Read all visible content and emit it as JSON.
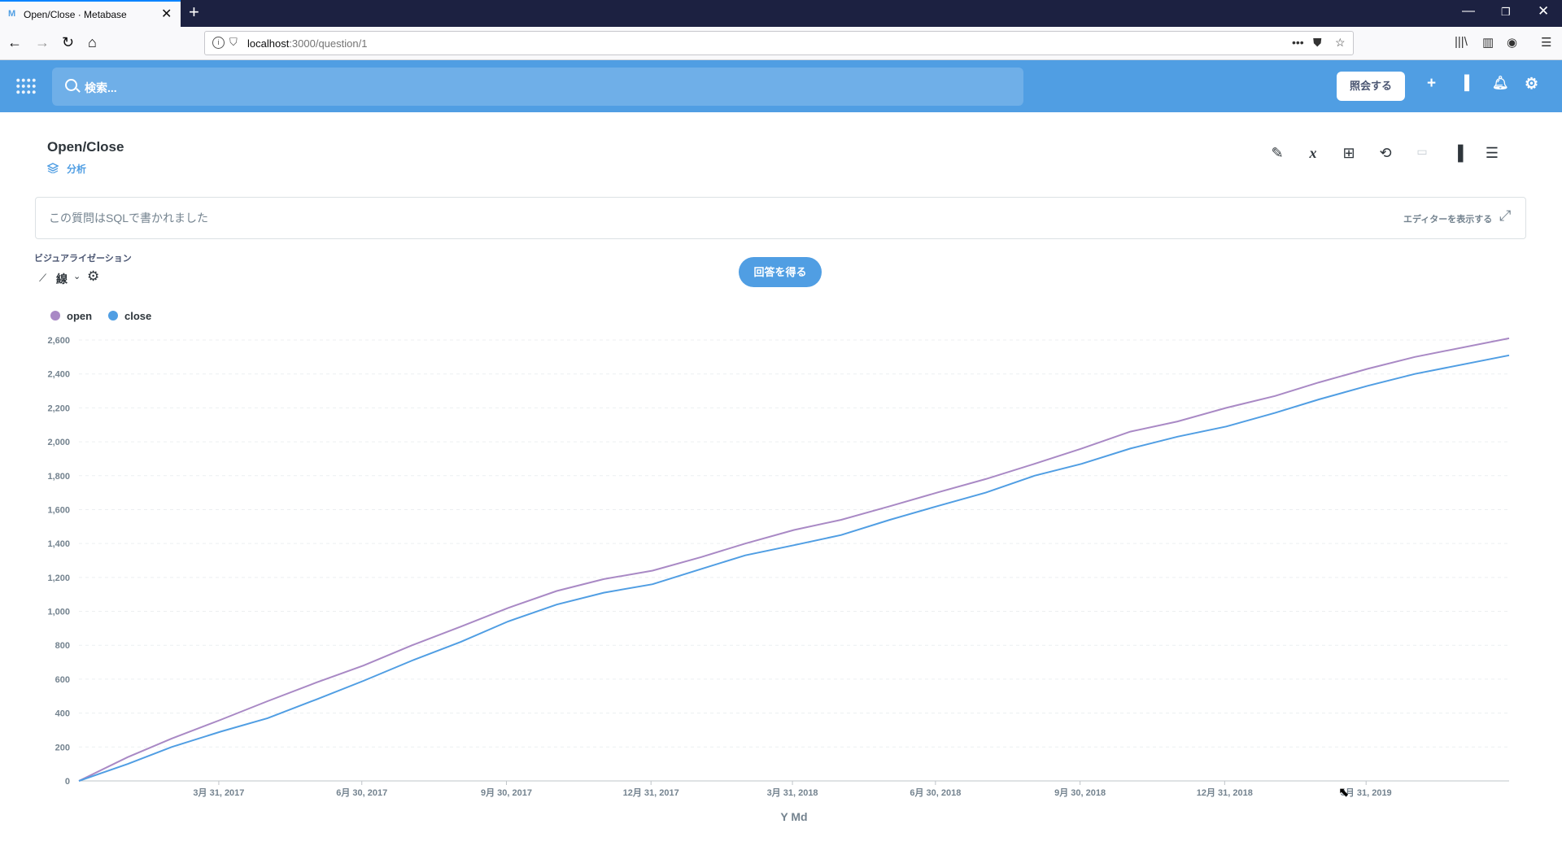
{
  "browser": {
    "tab_title": "Open/Close · Metabase",
    "favicon": "M",
    "url_host": "localhost",
    "url_path": ":3000/question/1"
  },
  "header": {
    "search_placeholder": "検索...",
    "ask_button": "照会する"
  },
  "question": {
    "title": "Open/Close",
    "collection": "分析",
    "sql_notice": "この質問はSQLで書かれました",
    "show_editor": "エディターを表示する"
  },
  "viz": {
    "label": "ビジュアライゼーション",
    "type": "線",
    "run_button": "回答を得る"
  },
  "colors": {
    "brand": "#509ee3",
    "open": "#a989c5",
    "close": "#509ee3"
  },
  "chart_data": {
    "type": "line",
    "xlabel": "Y Md",
    "ylabel": "",
    "ylim": [
      0,
      2600
    ],
    "yticks": [
      0,
      200,
      400,
      600,
      800,
      1000,
      1200,
      1400,
      1600,
      1800,
      2000,
      2200,
      2400,
      2600
    ],
    "ytick_labels": [
      "0",
      "200",
      "400",
      "600",
      "800",
      "1,000",
      "1,200",
      "1,400",
      "1,600",
      "1,800",
      "2,000",
      "2,200",
      "2,400",
      "2,600"
    ],
    "x_range": [
      "2017-01-01",
      "2019-06-30"
    ],
    "xticks": [
      "2017-03-31",
      "2017-06-30",
      "2017-09-30",
      "2017-12-31",
      "2018-03-31",
      "2018-06-30",
      "2018-09-30",
      "2018-12-31",
      "2019-03-31"
    ],
    "xtick_labels": [
      "3月 31, 2017",
      "6月 30, 2017",
      "9月 30, 2017",
      "12月 31, 2017",
      "3月 31, 2018",
      "6月 30, 2018",
      "9月 30, 2018",
      "12月 31, 2018",
      "3月 31, 2019"
    ],
    "legend_position": "top-left",
    "grid": true,
    "series": [
      {
        "name": "open",
        "color": "#a989c5",
        "points": [
          [
            "2017-01-01",
            0
          ],
          [
            "2017-02-01",
            140
          ],
          [
            "2017-03-01",
            250
          ],
          [
            "2017-04-01",
            360
          ],
          [
            "2017-05-01",
            470
          ],
          [
            "2017-06-01",
            580
          ],
          [
            "2017-07-01",
            680
          ],
          [
            "2017-08-01",
            800
          ],
          [
            "2017-09-01",
            910
          ],
          [
            "2017-10-01",
            1020
          ],
          [
            "2017-11-01",
            1120
          ],
          [
            "2017-12-01",
            1190
          ],
          [
            "2018-01-01",
            1240
          ],
          [
            "2018-02-01",
            1320
          ],
          [
            "2018-03-01",
            1400
          ],
          [
            "2018-04-01",
            1480
          ],
          [
            "2018-05-01",
            1540
          ],
          [
            "2018-06-01",
            1620
          ],
          [
            "2018-07-01",
            1700
          ],
          [
            "2018-08-01",
            1780
          ],
          [
            "2018-09-01",
            1870
          ],
          [
            "2018-10-01",
            1960
          ],
          [
            "2018-11-01",
            2060
          ],
          [
            "2018-12-01",
            2120
          ],
          [
            "2019-01-01",
            2200
          ],
          [
            "2019-02-01",
            2270
          ],
          [
            "2019-03-01",
            2350
          ],
          [
            "2019-04-01",
            2430
          ],
          [
            "2019-05-01",
            2500
          ],
          [
            "2019-06-30",
            2610
          ]
        ]
      },
      {
        "name": "close",
        "color": "#509ee3",
        "points": [
          [
            "2017-01-01",
            0
          ],
          [
            "2017-02-01",
            100
          ],
          [
            "2017-03-01",
            200
          ],
          [
            "2017-04-01",
            290
          ],
          [
            "2017-05-01",
            370
          ],
          [
            "2017-06-01",
            480
          ],
          [
            "2017-07-01",
            590
          ],
          [
            "2017-08-01",
            710
          ],
          [
            "2017-09-01",
            820
          ],
          [
            "2017-10-01",
            940
          ],
          [
            "2017-11-01",
            1040
          ],
          [
            "2017-12-01",
            1110
          ],
          [
            "2018-01-01",
            1160
          ],
          [
            "2018-02-01",
            1250
          ],
          [
            "2018-03-01",
            1330
          ],
          [
            "2018-04-01",
            1390
          ],
          [
            "2018-05-01",
            1450
          ],
          [
            "2018-06-01",
            1540
          ],
          [
            "2018-07-01",
            1620
          ],
          [
            "2018-08-01",
            1700
          ],
          [
            "2018-09-01",
            1800
          ],
          [
            "2018-10-01",
            1870
          ],
          [
            "2018-11-01",
            1960
          ],
          [
            "2018-12-01",
            2030
          ],
          [
            "2019-01-01",
            2090
          ],
          [
            "2019-02-01",
            2170
          ],
          [
            "2019-03-01",
            2250
          ],
          [
            "2019-04-01",
            2330
          ],
          [
            "2019-05-01",
            2400
          ],
          [
            "2019-06-30",
            2510
          ]
        ]
      }
    ]
  }
}
